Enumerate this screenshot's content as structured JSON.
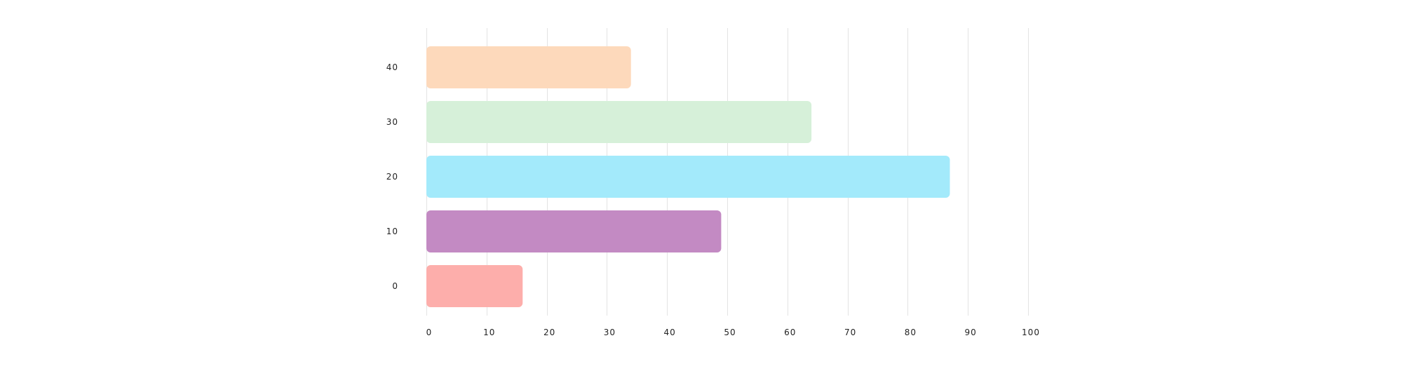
{
  "chart_data": {
    "type": "bar",
    "orientation": "horizontal",
    "categories": [
      "40",
      "30",
      "20",
      "10",
      "0"
    ],
    "values": [
      34,
      64,
      87,
      49,
      16
    ],
    "colors": [
      "#fdd9bb",
      "#d6f0d9",
      "#a3eafb",
      "#c38ac3",
      "#fdaeab"
    ],
    "xlim": [
      0,
      100
    ],
    "xticks": [
      "0",
      "10",
      "20",
      "30",
      "40",
      "50",
      "60",
      "70",
      "80",
      "90",
      "100"
    ],
    "grid": "vertical",
    "title": "",
    "xlabel": "",
    "ylabel": ""
  }
}
